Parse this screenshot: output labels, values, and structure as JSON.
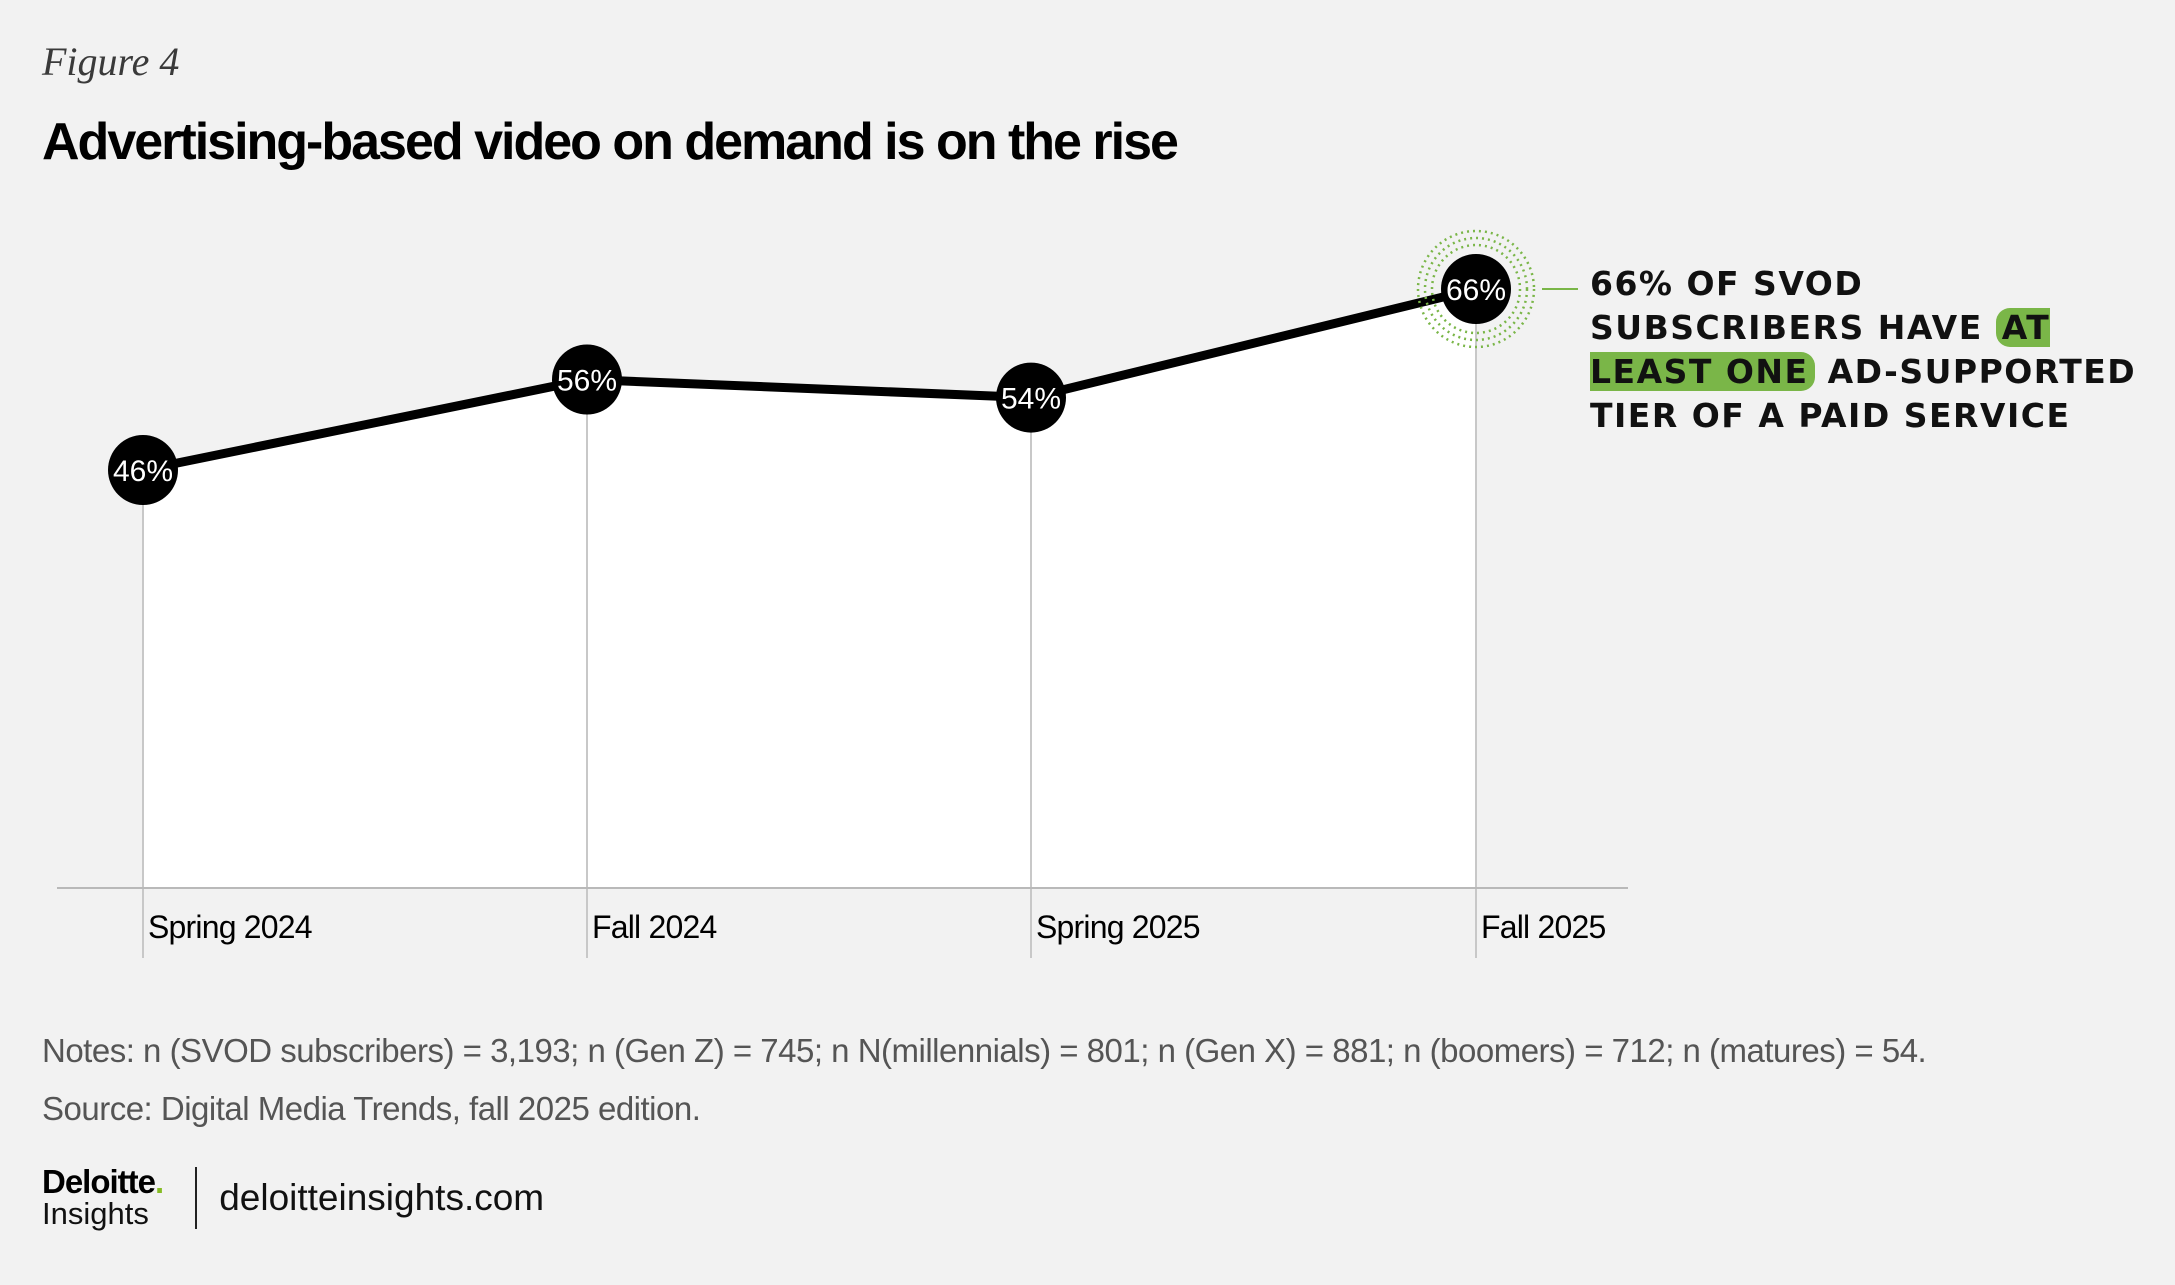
{
  "figure_label": "Figure 4",
  "title": "Advertising-based video on demand is on the rise",
  "annotation": {
    "before": "66% of SVOD subscribers have ",
    "highlight": "at least one",
    "after": " ad-supported tier of a paid service"
  },
  "notes": "Notes: n (SVOD subscribers) = 3,193; n (Gen Z) = 745; n N(millennials) = 801; n (Gen X) = 881; n (boomers) = 712; n (matures) = 54.",
  "source": "Source: Digital Media Trends, fall 2025 edition.",
  "footer": {
    "brand_top": "Deloitte",
    "brand_dot": ".",
    "brand_bottom": "Insights",
    "site": "deloitteinsights.com"
  },
  "colors": {
    "line": "#000000",
    "area": "#ffffff",
    "highlight": "#7ab648",
    "grid": "#c8c8c8"
  },
  "chart_data": {
    "type": "area",
    "categories": [
      "Spring 2024",
      "Fall 2024",
      "Spring 2025",
      "Fall 2025"
    ],
    "values": [
      46,
      56,
      54,
      66
    ],
    "data_labels": [
      "46%",
      "56%",
      "54%",
      "66%"
    ],
    "unit": "%",
    "highlighted_point": 3,
    "grid": false,
    "legend": "none"
  }
}
